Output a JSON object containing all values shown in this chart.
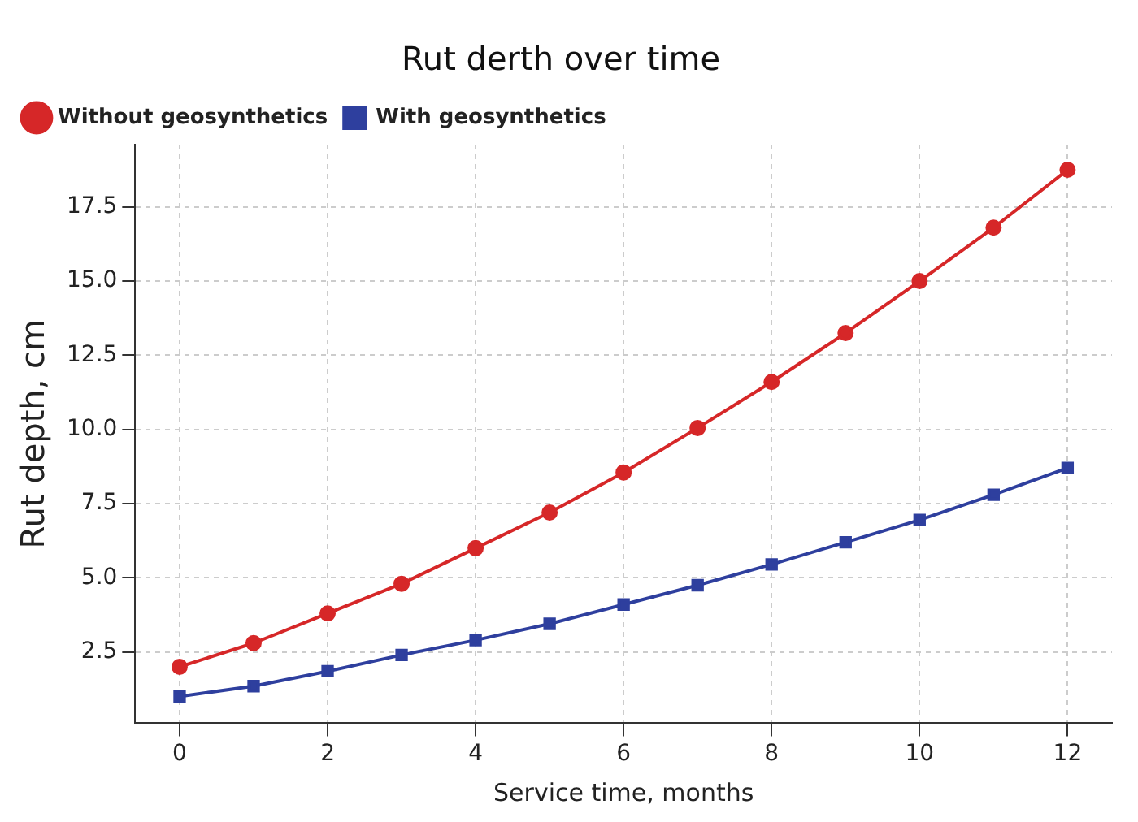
{
  "chart_data": {
    "type": "line",
    "title": "Rut derth over time",
    "xlabel": "Service time, months",
    "ylabel": "Rut depth, cm",
    "x": [
      0,
      1,
      2,
      3,
      4,
      5,
      6,
      7,
      8,
      9,
      10,
      11,
      12
    ],
    "series": [
      {
        "name": "Without geosynthetics",
        "color": "#d62728",
        "marker": "circle",
        "values": [
          2.0,
          2.8,
          3.8,
          4.8,
          6.0,
          7.2,
          8.55,
          10.05,
          11.6,
          13.25,
          15.0,
          16.8,
          18.75
        ]
      },
      {
        "name": "With geosynthetics",
        "color": "#2e3f9e",
        "marker": "square",
        "values": [
          1.0,
          1.35,
          1.85,
          2.4,
          2.9,
          3.45,
          4.1,
          4.75,
          5.45,
          6.2,
          6.95,
          7.8,
          8.7
        ]
      }
    ],
    "xlim": [
      -0.6,
      12.6
    ],
    "xticks": [
      0,
      2,
      4,
      6,
      8,
      10,
      12
    ],
    "ylim": [
      0.1,
      19.6
    ],
    "yticks": [
      {
        "value": 2.5,
        "label": "2.5"
      },
      {
        "value": 5,
        "label": "5.0"
      },
      {
        "value": 7.5,
        "label": "7.5"
      },
      {
        "value": 10,
        "label": "10.0"
      },
      {
        "value": 12.5,
        "label": "12.5"
      },
      {
        "value": 15,
        "label": "15.0"
      },
      {
        "value": 17.5,
        "label": "17.5"
      }
    ],
    "grid": true,
    "legend": "top left",
    "line_style": "solid"
  }
}
